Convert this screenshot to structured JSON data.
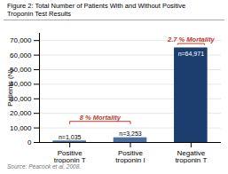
{
  "chart_data": {
    "type": "bar",
    "title": "Figure 2: Total Number of Patients With and Without Positive\nTroponin Test Results",
    "source": "Source: Peacock et al, 2008.",
    "categories": [
      "Positive\ntroponin T",
      "Positive\ntroponin I",
      "Negative\ntroponin T"
    ],
    "values": [
      1035,
      3253,
      64971
    ],
    "value_labels": [
      "n=1,035",
      "n=3,253",
      "n=64,971"
    ],
    "data_labels": true,
    "colors": [
      "#4a6fa0",
      "#4a6fa0",
      "#1b3e6f"
    ],
    "ylabel": "Patients (N)",
    "ylim": [
      0,
      75000
    ],
    "yticks": [
      0,
      {
        "value": 10000,
        "label": "10,000"
      },
      {
        "value": 20000,
        "label": "20,000"
      },
      {
        "value": 30000,
        "label": "30,000"
      },
      {
        "value": 40000,
        "label": "40,000"
      },
      {
        "value": 50000,
        "label": "50,000"
      },
      {
        "value": 60000,
        "label": "60,000"
      },
      {
        "value": 70000,
        "label": "70,000"
      }
    ],
    "grid": true,
    "annotations": [
      {
        "text": "8 % Mortality",
        "color": "#c0392b",
        "categories": [
          "Positive\ntroponin T",
          "Positive\ntroponin I"
        ]
      },
      {
        "text": "2.7 % Mortality",
        "color": "#c0392b",
        "categories": [
          "Negative\ntroponin T"
        ]
      }
    ]
  }
}
